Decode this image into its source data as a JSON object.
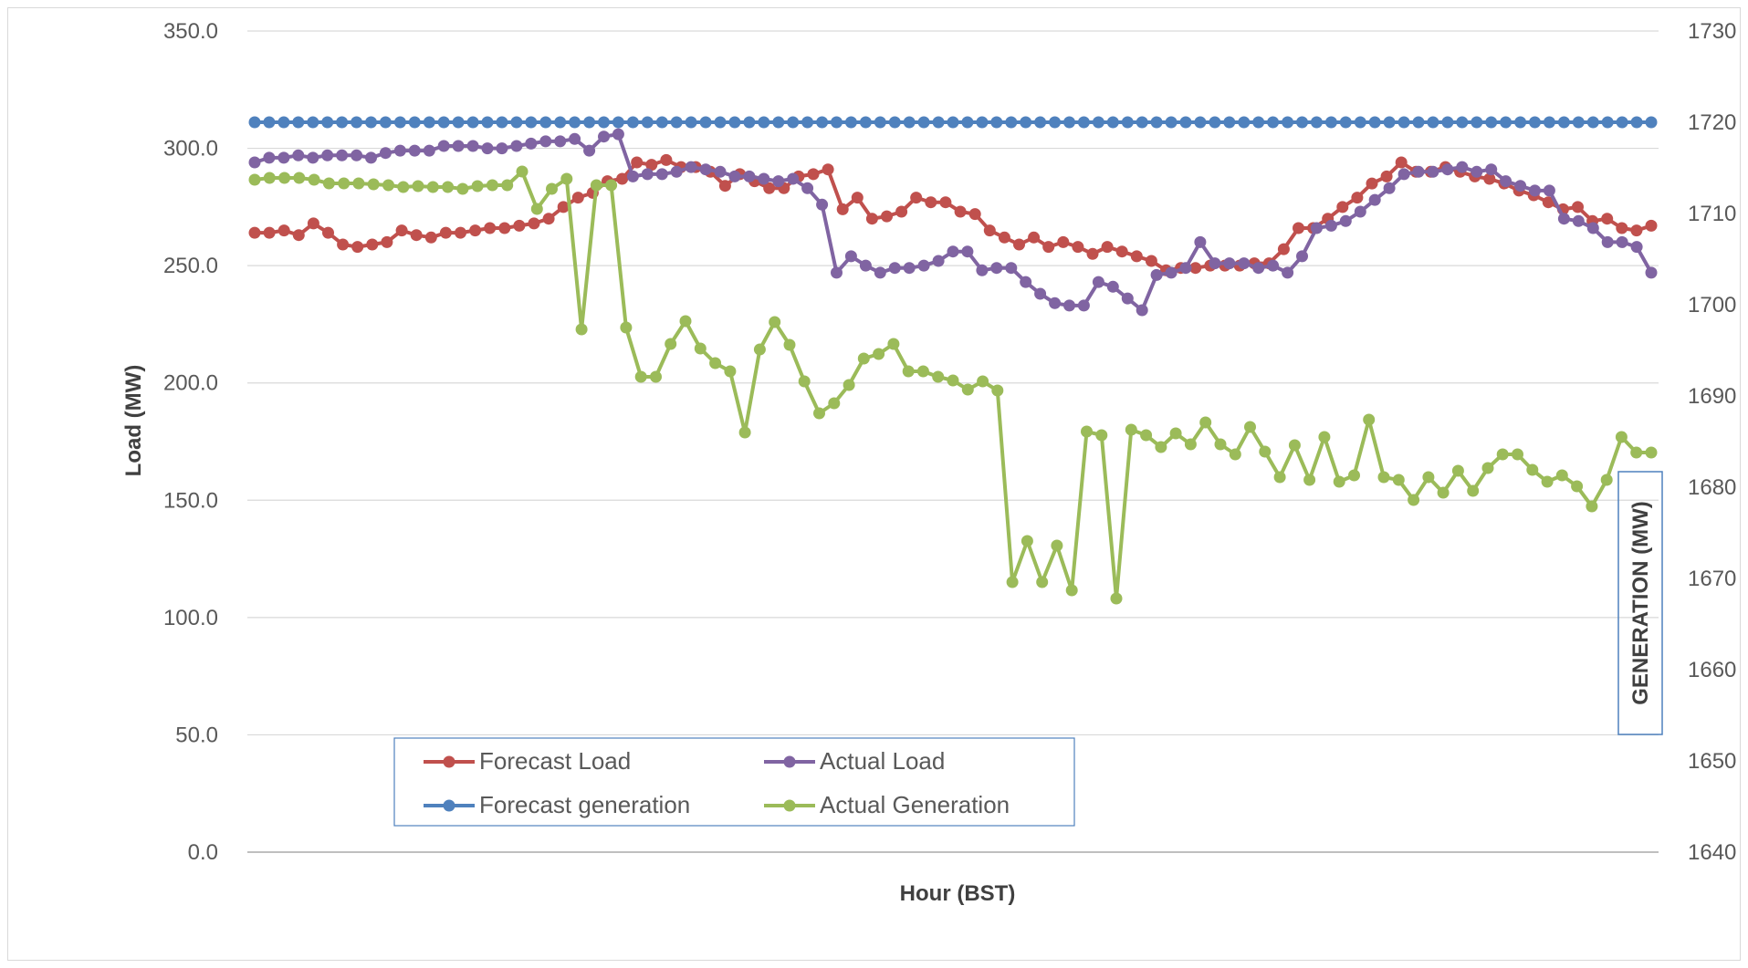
{
  "chart_data": {
    "type": "line",
    "xlabel": "Hour (BST)",
    "ylabel": "Load (MW)",
    "y2label": "GENERATION (MW)",
    "ylim": [
      0,
      350
    ],
    "y2lim": [
      1640,
      1730
    ],
    "yticks": [
      "0.0",
      "50.0",
      "100.0",
      "150.0",
      "200.0",
      "250.0",
      "300.0",
      "350.0"
    ],
    "y2ticks": [
      "1640",
      "1650",
      "1660",
      "1670",
      "1680",
      "1690",
      "1700",
      "1710",
      "1720",
      "1730"
    ],
    "x_axis_tick_labels": "none shown",
    "grid": "horizontal major gridlines",
    "legend_position": "bottom-left inside plot, 2x2",
    "series": [
      {
        "name": "Forecast Load",
        "axis": "primary",
        "color": "#c0504d",
        "values": [
          264,
          264,
          265,
          263,
          268,
          264,
          259,
          258,
          259,
          260,
          265,
          263,
          262,
          264,
          264,
          265,
          266,
          266,
          267,
          268,
          270,
          275,
          279,
          281,
          286,
          287,
          294,
          293,
          295,
          292,
          292,
          290,
          284,
          289,
          286,
          283,
          283,
          288,
          289,
          291,
          274,
          279,
          270,
          271,
          273,
          279,
          277,
          277,
          273,
          272,
          265,
          262,
          259,
          262,
          258,
          260,
          258,
          255,
          258,
          256,
          254,
          252,
          248,
          249,
          249,
          250,
          250,
          250,
          251,
          251,
          257,
          266,
          266,
          270,
          275,
          279,
          285,
          288,
          294,
          290,
          290,
          292,
          290,
          288,
          287,
          285,
          282,
          280,
          277,
          274,
          275,
          269,
          270,
          266,
          265,
          267
        ]
      },
      {
        "name": "Actual Load",
        "axis": "primary",
        "color": "#8064a2",
        "values": [
          294,
          296,
          296,
          297,
          296,
          297,
          297,
          297,
          296,
          298,
          299,
          299,
          299,
          301,
          301,
          301,
          300,
          300,
          301,
          302,
          303,
          303,
          304,
          299,
          305,
          306,
          288,
          289,
          289,
          290,
          292,
          291,
          290,
          288,
          288,
          287,
          286,
          287,
          283,
          276,
          247,
          254,
          250,
          247,
          249,
          249,
          250,
          252,
          256,
          256,
          248,
          249,
          249,
          243,
          238,
          234,
          233,
          233,
          243,
          241,
          236,
          231,
          246,
          247,
          249,
          260,
          251,
          251,
          251,
          249,
          250,
          247,
          254,
          266,
          267,
          269,
          273,
          278,
          283,
          289,
          290,
          290,
          291,
          292,
          290,
          291,
          286,
          284,
          282,
          282,
          270,
          269,
          266,
          260,
          260,
          258,
          247
        ]
      },
      {
        "name": "Forecast generation",
        "axis": "secondary",
        "color": "#4f81bd",
        "values": [
          1720,
          1720,
          1720,
          1720,
          1720,
          1720,
          1720,
          1720,
          1720,
          1720,
          1720,
          1720,
          1720,
          1720,
          1720,
          1720,
          1720,
          1720,
          1720,
          1720,
          1720,
          1720,
          1720,
          1720,
          1720,
          1720,
          1720,
          1720,
          1720,
          1720,
          1720,
          1720,
          1720,
          1720,
          1720,
          1720,
          1720,
          1720,
          1720,
          1720,
          1720,
          1720,
          1720,
          1720,
          1720,
          1720,
          1720,
          1720,
          1720,
          1720,
          1720,
          1720,
          1720,
          1720,
          1720,
          1720,
          1720,
          1720,
          1720,
          1720,
          1720,
          1720,
          1720,
          1720,
          1720,
          1720,
          1720,
          1720,
          1720,
          1720,
          1720,
          1720,
          1720,
          1720,
          1720,
          1720,
          1720,
          1720,
          1720,
          1720,
          1720,
          1720,
          1720,
          1720,
          1720,
          1720,
          1720,
          1720,
          1720,
          1720,
          1720,
          1720,
          1720,
          1720,
          1720,
          1720,
          1720
        ]
      },
      {
        "name": "Actual Generation",
        "axis": "secondary",
        "color": "#9bbb59",
        "values": [
          1713.7,
          1713.9,
          1713.9,
          1713.9,
          1713.7,
          1713.3,
          1713.3,
          1713.3,
          1713.2,
          1713.1,
          1712.9,
          1713.0,
          1712.9,
          1712.9,
          1712.7,
          1713.0,
          1713.1,
          1713.1,
          1714.6,
          1710.5,
          1712.7,
          1713.8,
          1697.3,
          1713.1,
          1713.1,
          1697.5,
          1692.1,
          1692.1,
          1695.7,
          1698.2,
          1695.2,
          1693.6,
          1692.7,
          1686.0,
          1695.1,
          1698.1,
          1695.6,
          1691.6,
          1688.1,
          1689.2,
          1691.2,
          1694.1,
          1694.6,
          1695.7,
          1692.7,
          1692.7,
          1692.1,
          1691.7,
          1690.7,
          1691.6,
          1690.6,
          1669.6,
          1674.1,
          1669.6,
          1673.6,
          1668.7,
          1686.1,
          1685.7,
          1667.8,
          1686.3,
          1685.7,
          1684.4,
          1685.9,
          1684.7,
          1687.1,
          1684.7,
          1683.6,
          1686.6,
          1683.9,
          1681.1,
          1684.6,
          1680.8,
          1685.5,
          1680.6,
          1681.3,
          1687.4,
          1681.1,
          1680.8,
          1678.6,
          1681.1,
          1679.4,
          1681.8,
          1679.6,
          1682.1,
          1683.6,
          1683.6,
          1681.9,
          1680.6,
          1681.3,
          1680.1,
          1677.9,
          1680.8,
          1685.5,
          1683.8,
          1683.8
        ]
      }
    ]
  }
}
